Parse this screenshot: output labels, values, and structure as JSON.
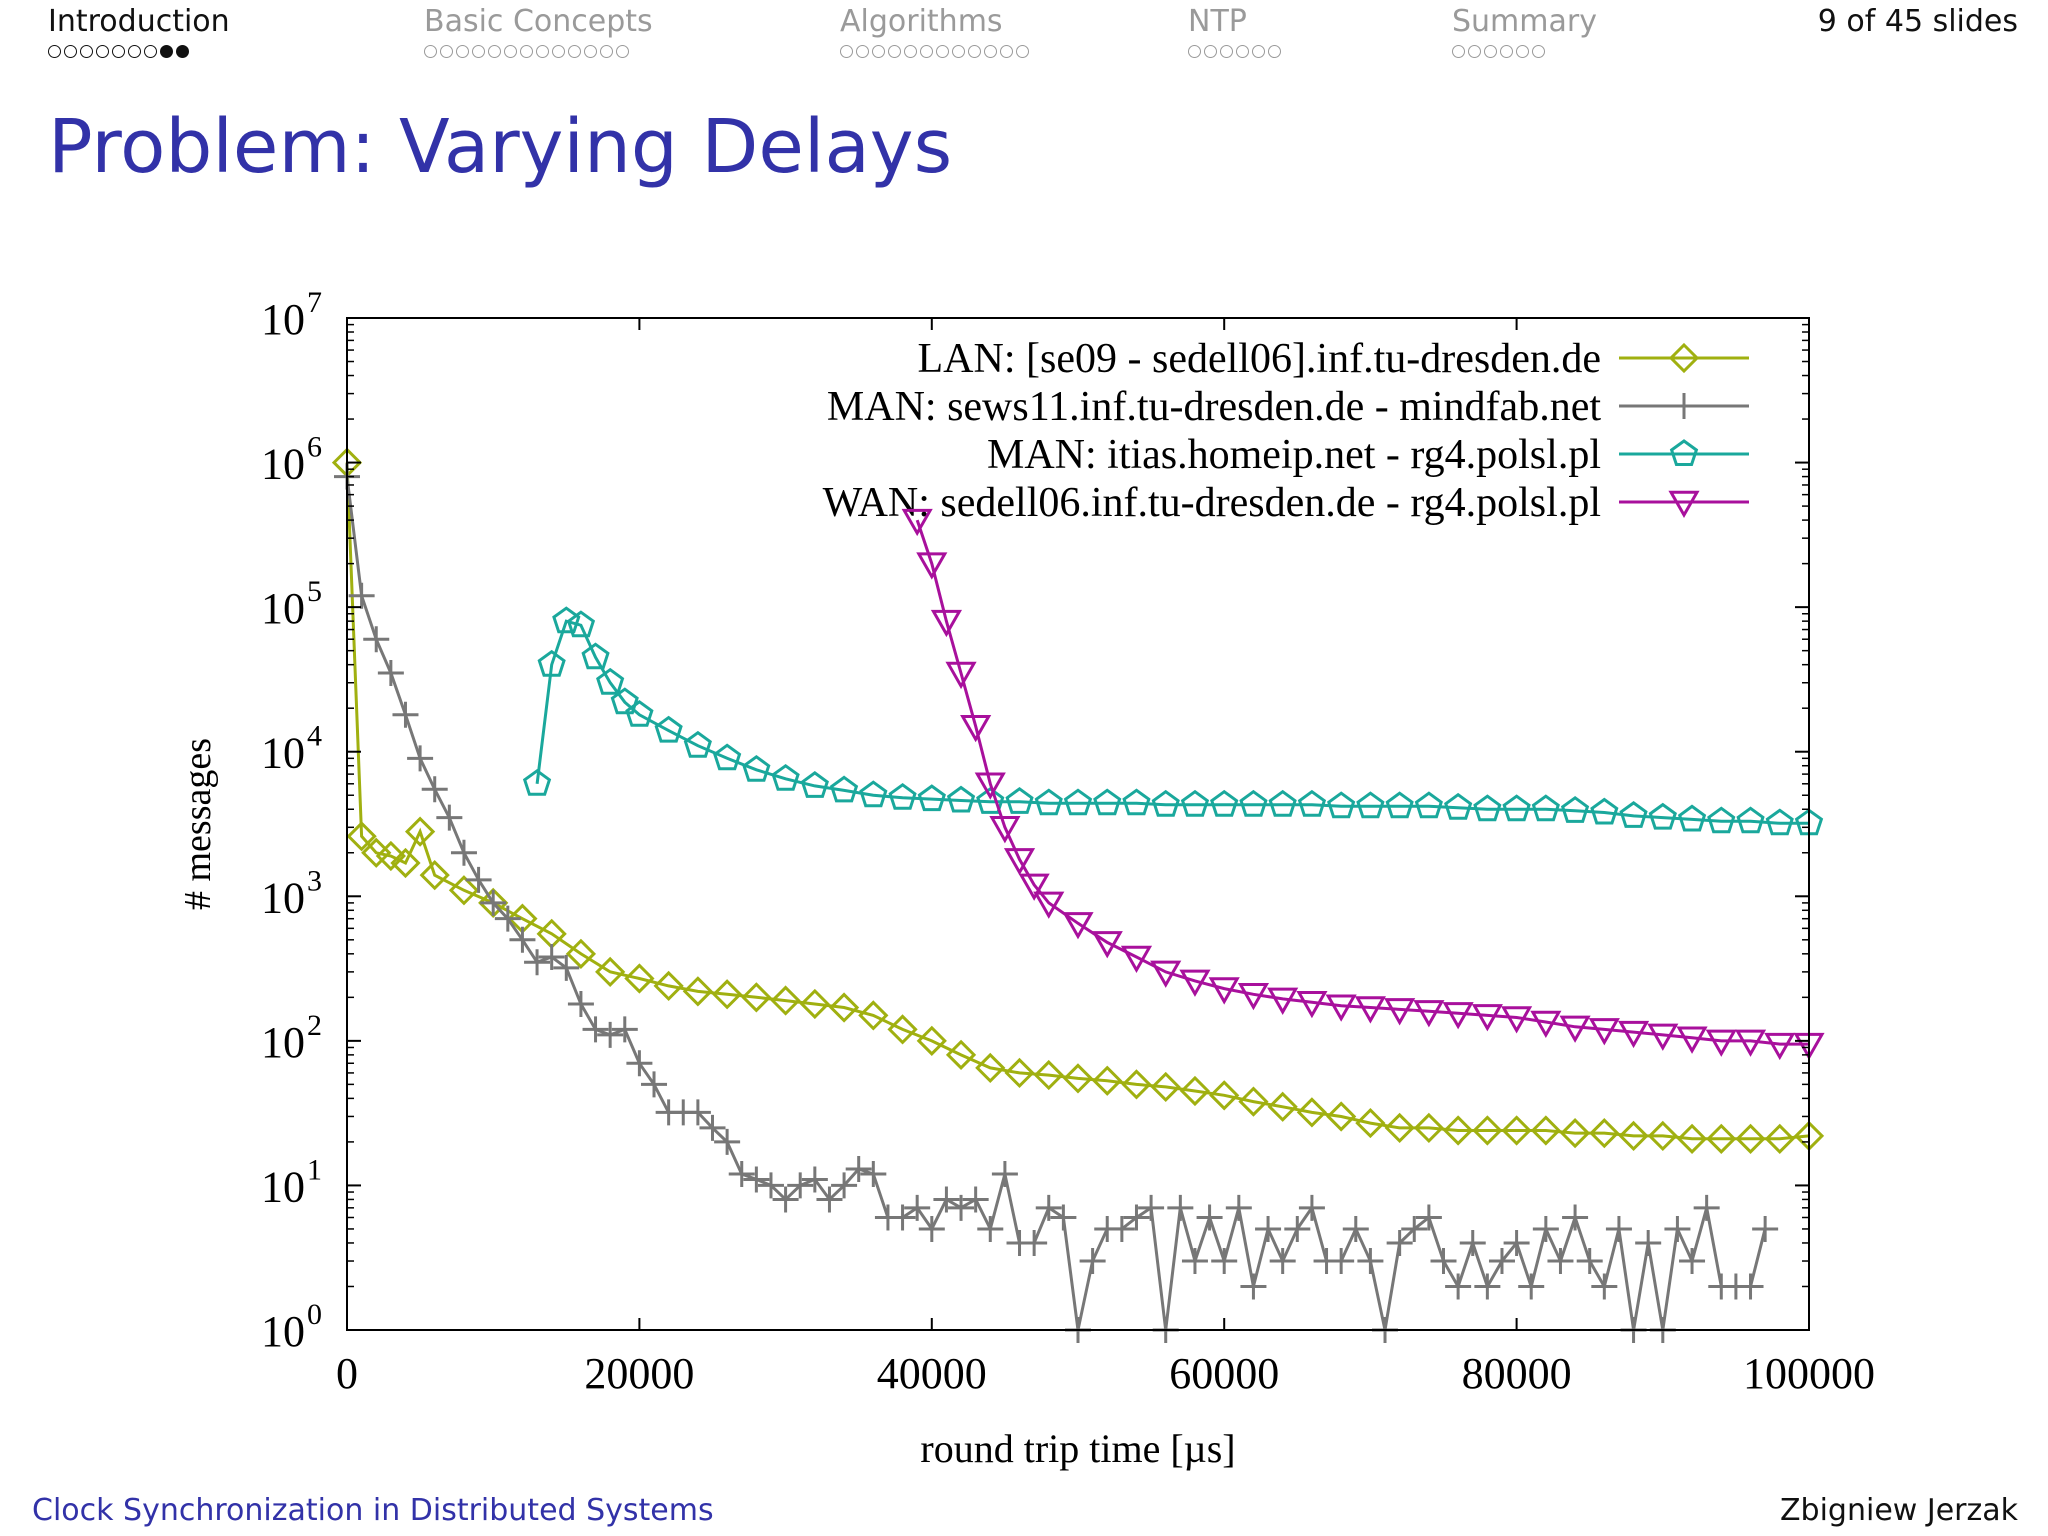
{
  "nav": {
    "sections": [
      {
        "label": "Introduction",
        "dots": 9,
        "filled": [
          7,
          8
        ],
        "active": true
      },
      {
        "label": "Basic Concepts",
        "dots": 13,
        "filled": [],
        "active": false
      },
      {
        "label": "Algorithms",
        "dots": 12,
        "filled": [],
        "active": false
      },
      {
        "label": "NTP",
        "dots": 6,
        "filled": [],
        "active": false
      },
      {
        "label": "Summary",
        "dots": 6,
        "filled": [],
        "active": false
      }
    ],
    "slide_count": "9 of 45 slides"
  },
  "slide": {
    "title": "Problem: Varying Delays"
  },
  "footer": {
    "left": "Clock Synchronization in Distributed Systems",
    "right": "Zbigniew Jerzak"
  },
  "chart_data": {
    "type": "line",
    "xlabel": "round trip time [µs]",
    "ylabel": "# messages",
    "xlim": [
      0,
      100000
    ],
    "ylim": [
      1,
      10000000
    ],
    "yscale": "log",
    "xticks": [
      "0",
      "20000",
      "40000",
      "60000",
      "80000",
      "100000"
    ],
    "yticks": [
      {
        "base": "10",
        "exp": "0"
      },
      {
        "base": "10",
        "exp": "1"
      },
      {
        "base": "10",
        "exp": "2"
      },
      {
        "base": "10",
        "exp": "3"
      },
      {
        "base": "10",
        "exp": "4"
      },
      {
        "base": "10",
        "exp": "5"
      },
      {
        "base": "10",
        "exp": "6"
      },
      {
        "base": "10",
        "exp": "7"
      }
    ],
    "grid": false,
    "legend_position": "top-right",
    "series": [
      {
        "name": "LAN: [se09 - sedell06].inf.tu-dresden.de",
        "color": "#a0b010",
        "marker": "diamond",
        "points": [
          [
            0,
            1000000
          ],
          [
            1000,
            2600
          ],
          [
            2000,
            2000
          ],
          [
            3000,
            1900
          ],
          [
            4000,
            1700
          ],
          [
            5000,
            2800
          ],
          [
            6000,
            1400
          ],
          [
            8000,
            1100
          ],
          [
            10000,
            900
          ],
          [
            12000,
            700
          ],
          [
            14000,
            550
          ],
          [
            16000,
            400
          ],
          [
            18000,
            300
          ],
          [
            20000,
            270
          ],
          [
            22000,
            240
          ],
          [
            24000,
            220
          ],
          [
            26000,
            210
          ],
          [
            28000,
            200
          ],
          [
            30000,
            190
          ],
          [
            32000,
            180
          ],
          [
            34000,
            170
          ],
          [
            36000,
            150
          ],
          [
            38000,
            120
          ],
          [
            40000,
            100
          ],
          [
            42000,
            80
          ],
          [
            44000,
            65
          ],
          [
            46000,
            60
          ],
          [
            48000,
            58
          ],
          [
            50000,
            55
          ],
          [
            52000,
            53
          ],
          [
            54000,
            50
          ],
          [
            56000,
            48
          ],
          [
            58000,
            45
          ],
          [
            60000,
            42
          ],
          [
            62000,
            38
          ],
          [
            64000,
            35
          ],
          [
            66000,
            32
          ],
          [
            68000,
            30
          ],
          [
            70000,
            27
          ],
          [
            72000,
            25
          ],
          [
            74000,
            25
          ],
          [
            76000,
            24
          ],
          [
            78000,
            24
          ],
          [
            80000,
            24
          ],
          [
            82000,
            24
          ],
          [
            84000,
            23
          ],
          [
            86000,
            23
          ],
          [
            88000,
            22
          ],
          [
            90000,
            22
          ],
          [
            92000,
            21
          ],
          [
            94000,
            21
          ],
          [
            96000,
            21
          ],
          [
            98000,
            21
          ],
          [
            100000,
            22
          ]
        ]
      },
      {
        "name": "MAN: sews11.inf.tu-dresden.de - mindfab.net",
        "color": "#777777",
        "marker": "plus",
        "points": [
          [
            0,
            800000
          ],
          [
            1000,
            120000
          ],
          [
            2000,
            60000
          ],
          [
            3000,
            35000
          ],
          [
            4000,
            18000
          ],
          [
            5000,
            9000
          ],
          [
            6000,
            5500
          ],
          [
            7000,
            3500
          ],
          [
            8000,
            2000
          ],
          [
            9000,
            1300
          ],
          [
            10000,
            900
          ],
          [
            11000,
            700
          ],
          [
            12000,
            500
          ],
          [
            13000,
            350
          ],
          [
            14000,
            380
          ],
          [
            15000,
            320
          ],
          [
            16000,
            180
          ],
          [
            17000,
            120
          ],
          [
            18000,
            110
          ],
          [
            19000,
            120
          ],
          [
            20000,
            70
          ],
          [
            21000,
            50
          ],
          [
            22000,
            32
          ],
          [
            23000,
            32
          ],
          [
            24000,
            32
          ],
          [
            25000,
            25
          ],
          [
            26000,
            20
          ],
          [
            27000,
            12
          ],
          [
            28000,
            11
          ],
          [
            29000,
            10
          ],
          [
            30000,
            8
          ],
          [
            31000,
            10
          ],
          [
            32000,
            11
          ],
          [
            33000,
            8
          ],
          [
            34000,
            10
          ],
          [
            35000,
            13
          ],
          [
            36000,
            12
          ],
          [
            37000,
            6
          ],
          [
            38000,
            6
          ],
          [
            39000,
            7
          ],
          [
            40000,
            5
          ],
          [
            41000,
            8
          ],
          [
            42000,
            7
          ],
          [
            43000,
            8
          ],
          [
            44000,
            5
          ],
          [
            45000,
            12
          ],
          [
            46000,
            4
          ],
          [
            47000,
            4
          ],
          [
            48000,
            7
          ],
          [
            49000,
            6
          ],
          [
            50000,
            1
          ],
          [
            51000,
            3
          ],
          [
            52000,
            5
          ],
          [
            53000,
            5
          ],
          [
            54000,
            6
          ],
          [
            55000,
            7
          ],
          [
            56000,
            1
          ],
          [
            57000,
            7
          ],
          [
            58000,
            3
          ],
          [
            59000,
            6
          ],
          [
            60000,
            3
          ],
          [
            61000,
            7
          ],
          [
            62000,
            2
          ],
          [
            63000,
            5
          ],
          [
            64000,
            3
          ],
          [
            65000,
            5
          ],
          [
            66000,
            7
          ],
          [
            67000,
            3
          ],
          [
            68000,
            3
          ],
          [
            69000,
            5
          ],
          [
            70000,
            3
          ],
          [
            71000,
            1
          ],
          [
            72000,
            4
          ],
          [
            73000,
            5
          ],
          [
            74000,
            6
          ],
          [
            75000,
            3
          ],
          [
            76000,
            2
          ],
          [
            77000,
            4
          ],
          [
            78000,
            2
          ],
          [
            79000,
            3
          ],
          [
            80000,
            4
          ],
          [
            81000,
            2
          ],
          [
            82000,
            5
          ],
          [
            83000,
            3
          ],
          [
            84000,
            6
          ],
          [
            85000,
            3
          ],
          [
            86000,
            2
          ],
          [
            87000,
            5
          ],
          [
            88000,
            1
          ],
          [
            89000,
            4
          ],
          [
            90000,
            1
          ],
          [
            91000,
            5
          ],
          [
            92000,
            3
          ],
          [
            93000,
            7
          ],
          [
            94000,
            2
          ],
          [
            95000,
            2
          ],
          [
            96000,
            2
          ],
          [
            97000,
            5
          ]
        ]
      },
      {
        "name": "MAN: itias.homeip.net - rg4.polsl.pl",
        "color": "#1aa89c",
        "marker": "pentagon",
        "points": [
          [
            13000,
            6000
          ],
          [
            14000,
            40000
          ],
          [
            15000,
            80000
          ],
          [
            16000,
            75000
          ],
          [
            17000,
            45000
          ],
          [
            18000,
            30000
          ],
          [
            19000,
            22000
          ],
          [
            20000,
            18000
          ],
          [
            22000,
            14000
          ],
          [
            24000,
            11000
          ],
          [
            26000,
            9000
          ],
          [
            28000,
            7500
          ],
          [
            30000,
            6500
          ],
          [
            32000,
            5800
          ],
          [
            34000,
            5400
          ],
          [
            36000,
            5000
          ],
          [
            38000,
            4800
          ],
          [
            40000,
            4700
          ],
          [
            42000,
            4600
          ],
          [
            44000,
            4500
          ],
          [
            46000,
            4500
          ],
          [
            48000,
            4400
          ],
          [
            50000,
            4400
          ],
          [
            52000,
            4400
          ],
          [
            54000,
            4400
          ],
          [
            56000,
            4300
          ],
          [
            58000,
            4300
          ],
          [
            60000,
            4300
          ],
          [
            62000,
            4300
          ],
          [
            64000,
            4300
          ],
          [
            66000,
            4300
          ],
          [
            68000,
            4200
          ],
          [
            70000,
            4200
          ],
          [
            72000,
            4200
          ],
          [
            74000,
            4200
          ],
          [
            76000,
            4100
          ],
          [
            78000,
            4000
          ],
          [
            80000,
            4000
          ],
          [
            82000,
            4000
          ],
          [
            84000,
            3900
          ],
          [
            86000,
            3800
          ],
          [
            88000,
            3600
          ],
          [
            90000,
            3500
          ],
          [
            92000,
            3400
          ],
          [
            94000,
            3300
          ],
          [
            96000,
            3300
          ],
          [
            98000,
            3200
          ],
          [
            100000,
            3200
          ]
        ]
      },
      {
        "name": "WAN: sedell06.inf.tu-dresden.de - rg4.polsl.pl",
        "color": "#a8109c",
        "marker": "triangle-down",
        "points": [
          [
            39000,
            400000
          ],
          [
            40000,
            200000
          ],
          [
            41000,
            80000
          ],
          [
            42000,
            35000
          ],
          [
            43000,
            15000
          ],
          [
            44000,
            6000
          ],
          [
            45000,
            3000
          ],
          [
            46000,
            1800
          ],
          [
            47000,
            1200
          ],
          [
            48000,
            900
          ],
          [
            50000,
            650
          ],
          [
            52000,
            480
          ],
          [
            54000,
            380
          ],
          [
            56000,
            300
          ],
          [
            58000,
            260
          ],
          [
            60000,
            230
          ],
          [
            62000,
            210
          ],
          [
            64000,
            195
          ],
          [
            66000,
            185
          ],
          [
            68000,
            175
          ],
          [
            70000,
            170
          ],
          [
            72000,
            165
          ],
          [
            74000,
            160
          ],
          [
            76000,
            155
          ],
          [
            78000,
            150
          ],
          [
            80000,
            145
          ],
          [
            82000,
            135
          ],
          [
            84000,
            125
          ],
          [
            86000,
            120
          ],
          [
            88000,
            115
          ],
          [
            90000,
            110
          ],
          [
            92000,
            105
          ],
          [
            94000,
            100
          ],
          [
            96000,
            100
          ],
          [
            98000,
            95
          ],
          [
            100000,
            95
          ]
        ]
      }
    ]
  }
}
